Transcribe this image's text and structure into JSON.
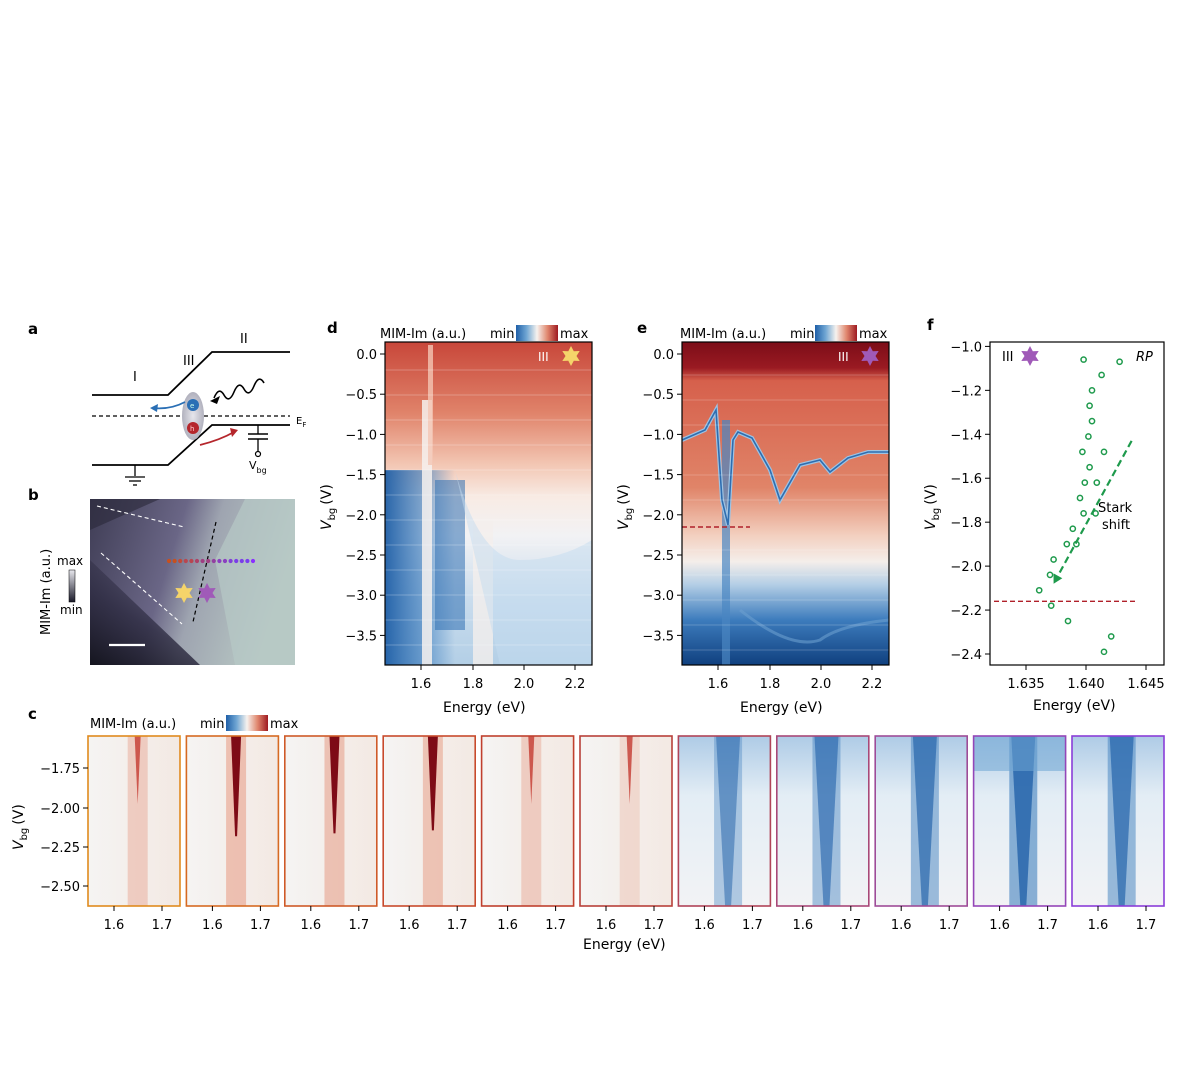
{
  "colors": {
    "blue": "#1f5fa8",
    "deep_blue": "#0d3f7a",
    "white": "#f6f2ee",
    "red": "#c43a2f",
    "deep_red": "#7e0b16",
    "green": "#1e9a4c",
    "purple": "#a05ab8",
    "yellow": "#f5d46a",
    "dash_red": "#b0202a"
  },
  "panel_a": {
    "letter": "a",
    "region_I": "I",
    "region_II": "II",
    "region_III": "III",
    "fermi_label": "E",
    "fermi_sub": "F",
    "vbg_label": "V",
    "vbg_sub": "bg",
    "electron": "e",
    "hole": "h"
  },
  "panel_b": {
    "letter": "b",
    "ylabel": "MIM-Im (a.u.)",
    "cbar_max": "max",
    "cbar_min": "min",
    "line_dot_colors": [
      "#c8501e",
      "#c24a36",
      "#b84650",
      "#ad4268",
      "#a03e82",
      "#9340a0",
      "#8a3fc0",
      "#8040d8",
      "#7b3ee8",
      "#7a3cf0",
      "#8a30ff"
    ]
  },
  "panel_d": {
    "letter": "d",
    "cbar_title": "MIM-Im (a.u.)",
    "cbar_min": "min",
    "cbar_max": "max",
    "region": "III",
    "xlabel": "Energy (eV)",
    "ylabel_main": "V",
    "ylabel_sub": "bg",
    "ylabel_unit": "(V)",
    "xticks": [
      "1.6",
      "1.8",
      "2.0",
      "2.2"
    ],
    "yticks": [
      "0.0",
      "−0.5",
      "−1.0",
      "−1.5",
      "−2.0",
      "−2.5",
      "−3.0",
      "−3.5"
    ]
  },
  "panel_e": {
    "letter": "e",
    "cbar_title": "MIM-Im (a.u.)",
    "cbar_min": "min",
    "cbar_max": "max",
    "region": "III",
    "xlabel": "Energy (eV)",
    "ylabel_main": "V",
    "ylabel_sub": "bg",
    "ylabel_unit": "(V)",
    "xticks": [
      "1.6",
      "1.8",
      "2.0",
      "2.2"
    ],
    "yticks": [
      "0.0",
      "−0.5",
      "−1.0",
      "−1.5",
      "−2.0",
      "−2.5",
      "−3.0",
      "−3.5"
    ]
  },
  "panel_c": {
    "letter": "c",
    "cbar_title": "MIM-Im (a.u.)",
    "cbar_min": "min",
    "cbar_max": "max",
    "xlabel": "Energy (eV)",
    "ylabel_main": "V",
    "ylabel_sub": "bg",
    "ylabel_unit": "(V)",
    "yticks": [
      "−1.75",
      "−2.00",
      "−2.25",
      "−2.50"
    ],
    "xticks": [
      "1.6",
      "1.7"
    ],
    "frame_colors": [
      "#e08a1e",
      "#d66a22",
      "#cf5a28",
      "#c84a2c",
      "#c0402e",
      "#b8403a",
      "#b04458",
      "#a84878",
      "#9e4c98",
      "#9446b8",
      "#8a3ed8"
    ],
    "intensity": [
      0.55,
      1.0,
      0.95,
      0.9,
      0.55,
      0.1,
      -0.45,
      -0.6,
      -0.7,
      -0.95,
      -0.75
    ]
  },
  "chart_data": [
    {
      "type": "scatter",
      "panel": "f",
      "letter": "f",
      "title": "",
      "xlabel": "Energy (eV)",
      "ylabel": "V_bg (V)",
      "ylabel_main": "V",
      "ylabel_sub": "bg",
      "ylabel_unit": "(V)",
      "region": "III",
      "tag": "RP",
      "annotation_line1": "Stark",
      "annotation_line2": "shift",
      "xlim": [
        1.632,
        1.6465
      ],
      "ylim": [
        -2.45,
        -0.98
      ],
      "xticks": [
        1.635,
        1.64,
        1.645
      ],
      "xtick_labels": [
        "1.635",
        "1.640",
        "1.645"
      ],
      "yticks": [
        -1.0,
        -1.2,
        -1.4,
        -1.6,
        -1.8,
        -2.0,
        -2.2,
        -2.4
      ],
      "ytick_labels": [
        "−1.0",
        "−1.2",
        "−1.4",
        "−1.6",
        "−1.8",
        "−2.0",
        "−2.2",
        "−2.4"
      ],
      "hline_y": -2.16,
      "arrow": {
        "from": [
          1.6438,
          -1.43
        ],
        "to": [
          1.6373,
          -2.08
        ]
      },
      "points": [
        [
          1.6398,
          -1.06
        ],
        [
          1.6428,
          -1.07
        ],
        [
          1.6413,
          -1.13
        ],
        [
          1.6405,
          -1.2
        ],
        [
          1.6403,
          -1.27
        ],
        [
          1.6405,
          -1.34
        ],
        [
          1.6402,
          -1.41
        ],
        [
          1.6397,
          -1.48
        ],
        [
          1.6415,
          -1.48
        ],
        [
          1.6403,
          -1.55
        ],
        [
          1.6399,
          -1.62
        ],
        [
          1.6409,
          -1.62
        ],
        [
          1.6395,
          -1.69
        ],
        [
          1.6398,
          -1.76
        ],
        [
          1.6408,
          -1.76
        ],
        [
          1.6389,
          -1.83
        ],
        [
          1.6384,
          -1.9
        ],
        [
          1.6392,
          -1.9
        ],
        [
          1.6373,
          -1.97
        ],
        [
          1.637,
          -2.04
        ],
        [
          1.6361,
          -2.11
        ],
        [
          1.6371,
          -2.18
        ],
        [
          1.6385,
          -2.25
        ],
        [
          1.6421,
          -2.32
        ],
        [
          1.6415,
          -2.39
        ]
      ]
    }
  ]
}
